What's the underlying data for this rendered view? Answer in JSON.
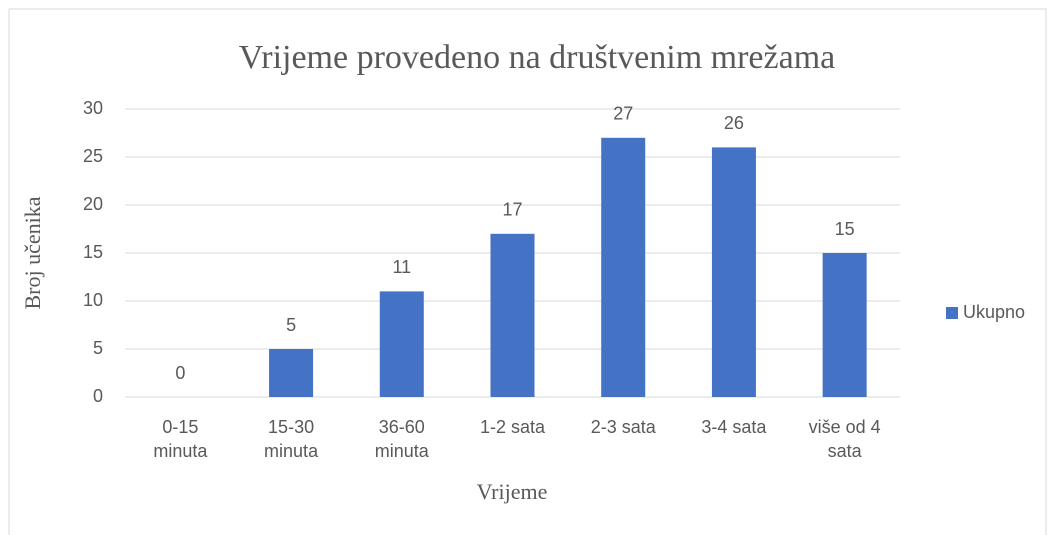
{
  "chart_data": {
    "type": "bar",
    "title": "Vrijeme provedeno na društvenim mrežama",
    "x_label": "Vrijeme",
    "y_label": "Broj učenika",
    "categories": [
      "0-15 minuta",
      "15-30 minuta",
      "36-60 minuta",
      "1-2 sata",
      "2-3 sata",
      "3-4 sata",
      "više od 4 sata"
    ],
    "series": [
      {
        "name": "Ukupno",
        "color": "#4472c4",
        "values": [
          0,
          5,
          11,
          17,
          27,
          26,
          15
        ]
      }
    ],
    "ylim": [
      0,
      30
    ],
    "yticks": [
      0,
      5,
      10,
      15,
      20,
      25,
      30
    ],
    "grid": true,
    "legend": "right"
  }
}
